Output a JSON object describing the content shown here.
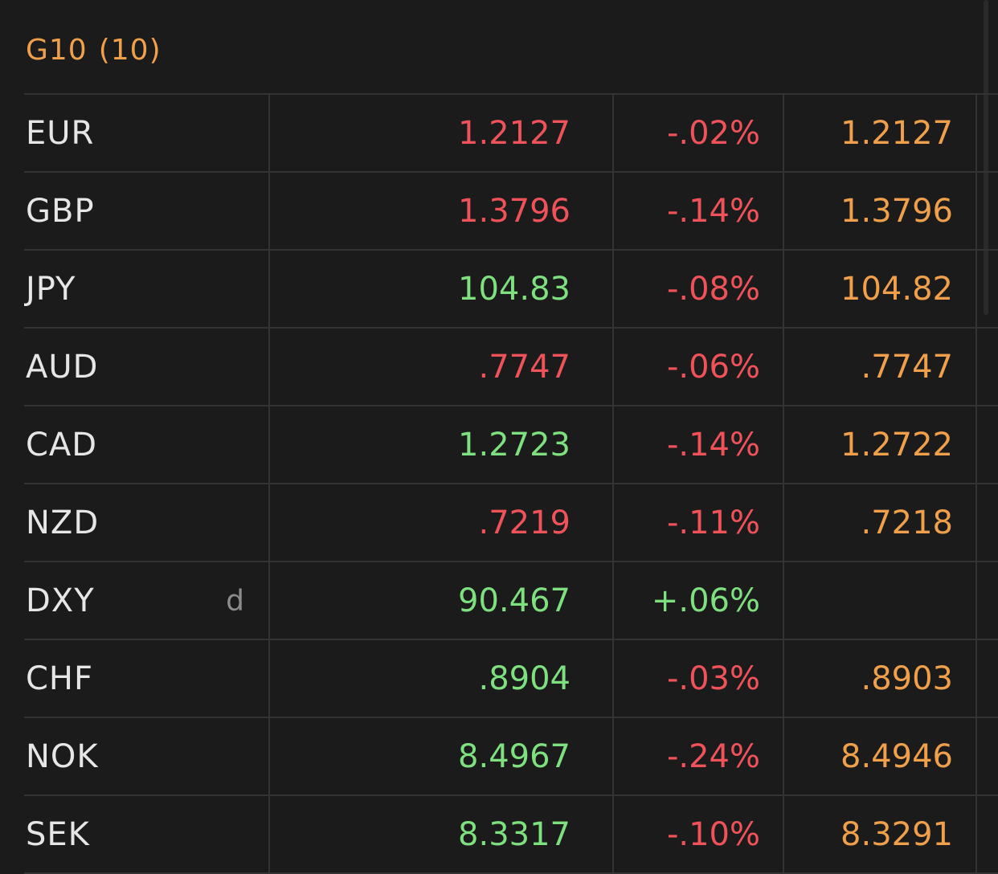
{
  "group": {
    "title": "G10",
    "count": "(10)"
  },
  "colors": {
    "up": "#7ee07e",
    "down": "#f0525a",
    "accent": "#f0a04b",
    "text": "#e6e6e6",
    "muted": "#8c8c8c",
    "background": "#1b1b1b",
    "grid": "#333333"
  },
  "rows": [
    {
      "name": "EUR",
      "flag": "",
      "last": "1.2127",
      "last_dir": "down",
      "chg": "-.02%",
      "chg_dir": "down",
      "ref": "1.2127"
    },
    {
      "name": "GBP",
      "flag": "",
      "last": "1.3796",
      "last_dir": "down",
      "chg": "-.14%",
      "chg_dir": "down",
      "ref": "1.3796"
    },
    {
      "name": "JPY",
      "flag": "",
      "last": "104.83",
      "last_dir": "up",
      "chg": "-.08%",
      "chg_dir": "down",
      "ref": "104.82"
    },
    {
      "name": "AUD",
      "flag": "",
      "last": ".7747",
      "last_dir": "down",
      "chg": "-.06%",
      "chg_dir": "down",
      "ref": ".7747"
    },
    {
      "name": "CAD",
      "flag": "",
      "last": "1.2723",
      "last_dir": "up",
      "chg": "-.14%",
      "chg_dir": "down",
      "ref": "1.2722"
    },
    {
      "name": "NZD",
      "flag": "",
      "last": ".7219",
      "last_dir": "down",
      "chg": "-.11%",
      "chg_dir": "down",
      "ref": ".7218"
    },
    {
      "name": "DXY",
      "flag": "d",
      "last": "90.467",
      "last_dir": "up",
      "chg": "+.06%",
      "chg_dir": "up",
      "ref": ""
    },
    {
      "name": "CHF",
      "flag": "",
      "last": ".8904",
      "last_dir": "up",
      "chg": "-.03%",
      "chg_dir": "down",
      "ref": ".8903"
    },
    {
      "name": "NOK",
      "flag": "",
      "last": "8.4967",
      "last_dir": "up",
      "chg": "-.24%",
      "chg_dir": "down",
      "ref": "8.4946"
    },
    {
      "name": "SEK",
      "flag": "",
      "last": "8.3317",
      "last_dir": "up",
      "chg": "-.10%",
      "chg_dir": "down",
      "ref": "8.3291"
    }
  ]
}
